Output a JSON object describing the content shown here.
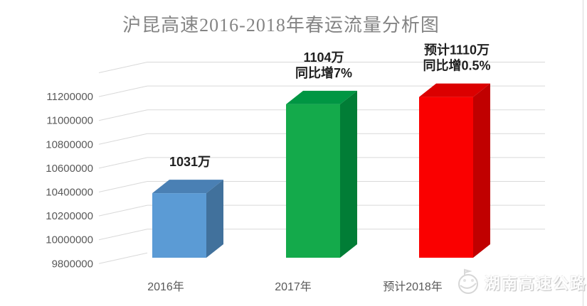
{
  "chart_data": {
    "type": "bar",
    "style": "3d-column",
    "title": "沪昆高速2016-2018年春运流量分析图",
    "categories": [
      "2016年",
      "2017年",
      "预计2018年"
    ],
    "values": [
      10310000,
      11040000,
      11100000
    ],
    "data_labels": [
      [
        "1031万"
      ],
      [
        "1104万",
        "同比增7%"
      ],
      [
        "预计1110万",
        "同比增0.5%"
      ]
    ],
    "y_ticks": [
      "11200000",
      "11000000",
      "10800000",
      "10600000",
      "10400000",
      "10200000",
      "10000000",
      "9800000"
    ],
    "ylim": [
      9800000,
      11400000
    ],
    "y_tick_step": 200000,
    "grid": true,
    "legend": "none",
    "bar_colors": [
      {
        "name": "blue",
        "front": "#5B9BD5",
        "top": "#4A80B4",
        "side": "#41719C"
      },
      {
        "name": "green",
        "front": "#14AA4B",
        "top": "#009643",
        "side": "#017D36"
      },
      {
        "name": "red",
        "front": "#FA0000",
        "top": "#DB0000",
        "side": "#C00000"
      }
    ]
  },
  "watermark": {
    "text": "湖南高速公路"
  },
  "colors": {
    "title": "#848484",
    "axis_label": "#595959",
    "gridline": "#D9D9D9",
    "data_label": "#1F1F1F",
    "background": "#FFFFFF"
  }
}
